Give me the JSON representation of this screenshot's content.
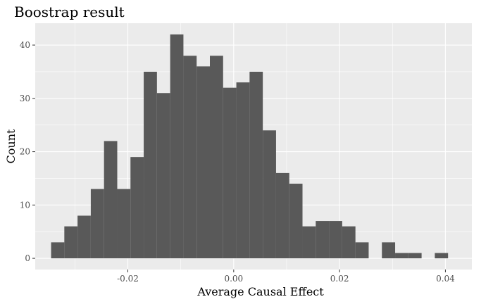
{
  "chart_data": {
    "type": "bar",
    "title": "Boostrap result",
    "xlabel": "Average Causal Effect",
    "ylabel": "Count",
    "xlim": [
      -0.0375,
      0.045
    ],
    "ylim": [
      -2.1,
      44.1
    ],
    "bin_width": 0.0025,
    "bin_starts": [
      -0.0345,
      -0.032,
      -0.0295,
      -0.027,
      -0.0245,
      -0.022,
      -0.0195,
      -0.017,
      -0.0145,
      -0.012,
      -0.0095,
      -0.007,
      -0.0045,
      -0.002,
      0.0005,
      0.003,
      0.0055,
      0.008,
      0.0105,
      0.013,
      0.0155,
      0.018,
      0.0205,
      0.023,
      0.0255,
      0.028,
      0.0305,
      0.033,
      0.0355,
      0.038,
      0.0405
    ],
    "values": [
      3,
      6,
      8,
      13,
      22,
      13,
      19,
      35,
      31,
      42,
      38,
      36,
      38,
      32,
      33,
      35,
      24,
      16,
      14,
      6,
      7,
      7,
      6,
      3,
      0,
      3,
      1,
      1,
      0,
      1,
      0
    ],
    "x_ticks": [
      -0.02,
      0.0,
      0.02,
      0.04
    ],
    "x_tick_labels": [
      "-0.02",
      "0.00",
      "0.02",
      "0.04"
    ],
    "y_ticks": [
      0,
      10,
      20,
      30,
      40
    ],
    "y_tick_labels": [
      "0",
      "10",
      "20",
      "30",
      "40"
    ],
    "grid": true,
    "colors": {
      "bar": "#595959",
      "panel": "#ebebeb",
      "grid": "#ffffff",
      "tick_label": "#4d4d4d",
      "tick": "#333333"
    }
  }
}
